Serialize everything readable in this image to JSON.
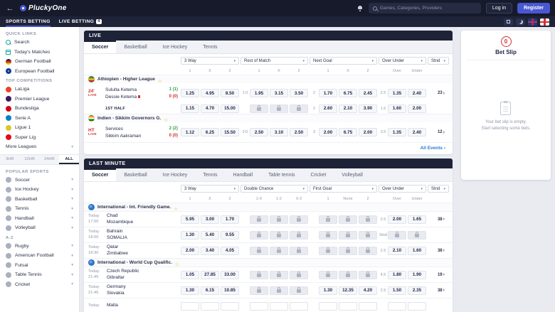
{
  "colors": {
    "accent": "#4a57d2",
    "live_red": "#d03030",
    "score_green": "#2f9e44",
    "topbar_bg": "#161a2b",
    "nav_bg": "#1e2338",
    "page_bg": "#e9ebf1"
  },
  "topbar": {
    "logo": "PluckyOne",
    "search_placeholder": "Games, Categories, Providers",
    "login": "Log in",
    "register": "Register"
  },
  "nav": {
    "sports": "SPORTS BETTING",
    "live": "LIVE BETTING",
    "live_badge": "4"
  },
  "sidebar": {
    "quick_title": "QUICK LINKS",
    "quick": [
      {
        "label": "Search"
      },
      {
        "label": "Today's Matches"
      },
      {
        "label": "German Football"
      },
      {
        "label": "European Football"
      }
    ],
    "comp_title": "TOP COMPETITIONS",
    "competitions": [
      {
        "label": "LaLiga"
      },
      {
        "label": "Premier League"
      },
      {
        "label": "Bundesliga"
      },
      {
        "label": "Serie A"
      },
      {
        "label": "Ligue 1"
      },
      {
        "label": "Super Lig"
      }
    ],
    "more_leagues": "More Leagues",
    "filters": [
      "3HR",
      "12HR",
      "24HR",
      "ALL"
    ],
    "active_filter": "ALL",
    "popular_title": "POPULAR SPORTS",
    "popular": [
      {
        "label": "Soccer"
      },
      {
        "label": "Ice Hockey"
      },
      {
        "label": "Basketball"
      },
      {
        "label": "Tennis"
      },
      {
        "label": "Handball"
      },
      {
        "label": "Volleyball"
      }
    ],
    "az_title": "A-Z",
    "az": [
      {
        "label": "Rugby"
      },
      {
        "label": "American Football"
      },
      {
        "label": "Futsal"
      },
      {
        "label": "Table Tennis"
      },
      {
        "label": "Cricket"
      }
    ]
  },
  "live": {
    "title": "LIVE",
    "tabs": [
      "Soccer",
      "Basketball",
      "Ice Hockey",
      "Tennis"
    ],
    "active_tab": "Soccer",
    "markets": [
      "3 Way",
      "Rest of Match",
      "Next Goal",
      "Over Under",
      "Stnd"
    ],
    "headers": {
      "one": "1",
      "x": "X",
      "two": "2",
      "over": "Over",
      "under": "Under"
    },
    "league1": "Äthiopien - Higher League",
    "match1": {
      "clock": "24'",
      "status": "LIVE",
      "home": "Sululta Ketema",
      "away": "Dessie Ketema",
      "home_score": "1 (1)",
      "away_score": "0 (0)",
      "w1": "1.25",
      "wx": "4.95",
      "w2": "8.50",
      "rest_ref": "1:0",
      "r1": "1.95",
      "rx": "3.15",
      "r2": "3.50",
      "next_ref": "2",
      "n1": "1.70",
      "nx": "6.75",
      "n2": "2.45",
      "ou_ref": "2.5",
      "over": "1.35",
      "under": "2.40",
      "count": "23"
    },
    "match1_half": {
      "label": "1ST HALF",
      "w1": "1.15",
      "wx": "4.70",
      "w2": "15.00",
      "next_ref": "2",
      "n1": "2.60",
      "nx": "2.10",
      "n2": "3.90",
      "ou_ref": "1.5",
      "over": "1.60",
      "under": "2.00"
    },
    "league2": "Indien - Sikkim Governors G.",
    "match2": {
      "clock": "HT",
      "status": "LIVE",
      "home": "Services",
      "away": "Sikkim Aakraman",
      "home_score": "2 (2)",
      "away_score": "0 (0)",
      "w1": "1.12",
      "wx": "6.25",
      "w2": "15.50",
      "rest_ref": "2:0",
      "r1": "2.50",
      "rx": "3.10",
      "r2": "2.50",
      "next_ref": "3",
      "n1": "2.00",
      "nx": "6.75",
      "n2": "2.00",
      "ou_ref": "3.5",
      "over": "1.35",
      "under": "2.40",
      "count": "12"
    },
    "all_events": "All Events"
  },
  "lastminute": {
    "title": "LAST MINUTE",
    "tabs": [
      "Soccer",
      "Basketball",
      "Ice Hockey",
      "Tennis",
      "Handball",
      "Table tennis",
      "Cricket",
      "Volleyball"
    ],
    "active_tab": "Soccer",
    "markets": [
      "3 Way",
      "Double Chance",
      "First Goal",
      "Over Under",
      "Stnd"
    ],
    "headers": {
      "one": "1",
      "x": "X",
      "two": "2",
      "dc1": "1-X",
      "dc2": "1-2",
      "dc3": "X-2",
      "fg1": "1",
      "fgn": "None",
      "fg2": "2",
      "over": "Over",
      "under": "Under"
    },
    "league1": "International - Int. Friendly Game.",
    "league2": "International - World Cup Qualific.",
    "m1": {
      "day": "Today",
      "time": "17:00",
      "home": "Chad",
      "away": "Mozambique",
      "w1": "5.95",
      "wx": "3.00",
      "w2": "1.70",
      "ou_ref": "2.5",
      "over": "2.00",
      "under": "1.65",
      "count": "38"
    },
    "m2": {
      "day": "Today",
      "time": "18:00",
      "home": "Bahrain",
      "away": "SOMALIA",
      "w1": "1.30",
      "wx": "5.40",
      "w2": "9.55",
      "ou_ref": "Stnd",
      "count": ""
    },
    "m3": {
      "day": "Today",
      "time": "18:30",
      "home": "Qatar",
      "away": "Zimbabwe",
      "w1": "2.00",
      "wx": "3.40",
      "w2": "4.05",
      "ou_ref": "2.5",
      "over": "2.10",
      "under": "1.60",
      "count": "38"
    },
    "m4": {
      "day": "Today",
      "time": "21:45",
      "home": "Czech Republic",
      "away": "Gibraltar",
      "w1": "1.05",
      "wx": "27.85",
      "w2": "33.00",
      "ou_ref": "4.5",
      "over": "1.80",
      "under": "1.90",
      "count": "19"
    },
    "m5": {
      "day": "Today",
      "time": "21:45",
      "home": "Germany",
      "away": "Slovakia",
      "w1": "1.30",
      "wx": "6.15",
      "w2": "10.85",
      "fg1": "1.30",
      "fgx": "12.35",
      "fg2": "4.20",
      "ou_ref": "2.5",
      "over": "1.50",
      "under": "2.35",
      "count": "38"
    },
    "m6": {
      "day": "Today",
      "time": "",
      "home": "Malta",
      "away": ""
    }
  },
  "betslip": {
    "count": "0",
    "title": "Bet Slip",
    "empty1": "Your bet slip is empty.",
    "empty2": "Start selecting some bets."
  }
}
